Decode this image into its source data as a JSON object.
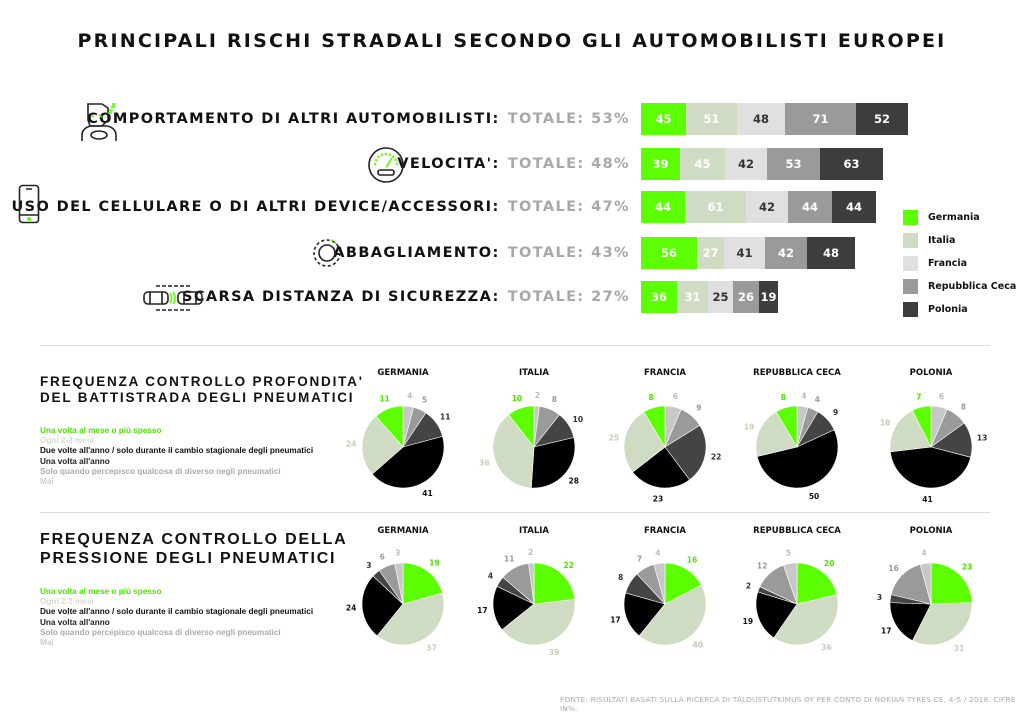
{
  "title": "PRINCIPALI RISCHI STRADALI SECONDO GLI AUTOMOBILISTI EUROPEI",
  "colors": {
    "Germania": "#5cff00",
    "Italia": "#cfdbc2",
    "Francia": "#e0e0e0",
    "Repubblica Ceca": "#9a9a9a",
    "Polonia": "#3d3d3d"
  },
  "chart_data": [
    {
      "type": "bar",
      "orientation": "horizontal-stacked",
      "legend_position": "right",
      "series_names": [
        "Germania",
        "Italia",
        "Francia",
        "Repubblica Ceca",
        "Polonia"
      ],
      "rows": [
        {
          "label": "COMPORTAMENTO DI ALTRI AUTOMOBILISTI:",
          "total": "TOTALE: 53%",
          "icon": "sleepy-driver-icon",
          "values": [
            45,
            51,
            48,
            71,
            52
          ]
        },
        {
          "label": "VELOCITA':",
          "total": "TOTALE: 48%",
          "icon": "speedometer-icon",
          "values": [
            39,
            45,
            42,
            53,
            63
          ]
        },
        {
          "label": "USO DEL CELLULARE O DI ALTRI DEVICE/ACCESSORI:",
          "total": "TOTALE: 47%",
          "icon": "smartphone-icon",
          "values": [
            44,
            61,
            42,
            44,
            44
          ]
        },
        {
          "label": "ABBAGLIAMENTO:",
          "total": "TOTALE: 43%",
          "icon": "sun-glare-icon",
          "values": [
            56,
            27,
            41,
            42,
            48
          ]
        },
        {
          "label": "SCARSA DISTANZA DI SICUREZZA:",
          "total": "TOTALE: 27%",
          "icon": "cars-distance-icon",
          "values": [
            36,
            31,
            25,
            26,
            19
          ]
        }
      ]
    },
    {
      "type": "pie",
      "title": "FREQUENZA CONTROLLO PROFONDITA' DEL BATTISTRADA DEGLI PNEUMATICI",
      "title_lines": [
        "FREQUENZA CONTROLLO PROFONDITA'",
        "DEL BATTISTRADA DEGLI PNEUMATICI"
      ],
      "categories": [
        "Una volta al mese o più spesso",
        "Ogni 2-3 mesi",
        "Due volte all'anno / solo durante il cambio stagionale degli pneumatici",
        "Una volta all'anno",
        "Solo quando percepisco qualcosa di diverso negli pneumatici",
        "Mai"
      ],
      "pies": [
        {
          "name": "GERMANIA",
          "values": [
            11,
            24,
            41,
            11,
            5,
            4
          ]
        },
        {
          "name": "ITALIA",
          "values": [
            10,
            36,
            28,
            10,
            8,
            2
          ]
        },
        {
          "name": "FRANCIA",
          "values": [
            8,
            25,
            23,
            22,
            9,
            6
          ]
        },
        {
          "name": "REPUBBLICA CECA",
          "values": [
            8,
            19,
            50,
            9,
            4,
            4
          ]
        },
        {
          "name": "POLONIA",
          "values": [
            7,
            18,
            41,
            13,
            8,
            6
          ]
        }
      ]
    },
    {
      "type": "pie",
      "title": "FREQUENZA CONTROLLO DELLA PRESSIONE DEGLI PNEUMATICI",
      "title_lines": [
        "FREQUENZA CONTROLLO DELLA",
        "PRESSIONE DEGLI PNEUMATICI"
      ],
      "categories": [
        "Una volta al mese o più spesso",
        "Ogni 2-3 mesi",
        "Due volte all'anno / solo durante il cambio stagionale degli pneumatici",
        "Una volta all'anno",
        "Solo quando percepisco qualcosa di diverso negli pneumatici",
        "Mai"
      ],
      "pies": [
        {
          "name": "GERMANIA",
          "values": [
            19,
            37,
            24,
            3,
            6,
            3
          ]
        },
        {
          "name": "ITALIA",
          "values": [
            22,
            39,
            17,
            4,
            11,
            2
          ]
        },
        {
          "name": "FRANCIA",
          "values": [
            16,
            40,
            17,
            8,
            7,
            4
          ]
        },
        {
          "name": "REPUBBLICA CECA",
          "values": [
            20,
            36,
            19,
            2,
            12,
            5
          ]
        },
        {
          "name": "POLONIA",
          "values": [
            23,
            31,
            17,
            3,
            16,
            4
          ]
        }
      ]
    }
  ],
  "pie_colors": [
    "#5cff00",
    "#cfdbc2",
    "#000000",
    "#444444",
    "#9a9a9a",
    "#c8c8c8"
  ],
  "pie_label_colors": [
    "#4ee000",
    "#c3cdb8",
    "#111111",
    "#333333",
    "#9a9a9a",
    "#bbbbbb"
  ],
  "footer": "FONTE: RISULTATI BASATI SULLA RICERCA DI TALOUSTUTKIMUS OY PER CONTO DI NOKIAN TYRES CE, 4-5 / 2018. CIFRE IN%."
}
